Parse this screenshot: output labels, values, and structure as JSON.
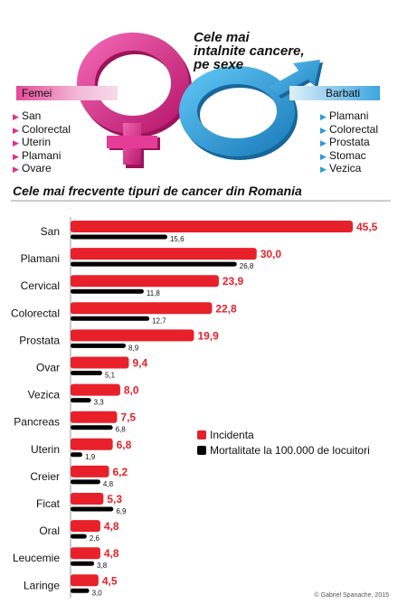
{
  "header": {
    "title_lines": [
      "Cele mai",
      "intalnite cancere,",
      "pe sexe"
    ],
    "women": {
      "label": "Femei",
      "color": "#e2318b",
      "cancers": [
        "San",
        "Colorectal",
        "Uterin",
        "Plamani",
        "Ovare"
      ]
    },
    "men": {
      "label": "Barbati",
      "color": "#2b9ad6",
      "cancers": [
        "Plamani",
        "Colorectal",
        "Prostata",
        "Stomac",
        "Vezica"
      ]
    },
    "icons": [
      "venus-symbol-icon",
      "mars-symbol-icon",
      "triangle-bullet-icon"
    ]
  },
  "credit": "© Gabriel Spanache, 2015",
  "chart_data": {
    "type": "bar",
    "orientation": "horizontal",
    "title": "Cele mai frecvente tipuri de cancer din Romania",
    "categories": [
      "San",
      "Plamani",
      "Cervical",
      "Colorectal",
      "Prostata",
      "Ovar",
      "Vezica",
      "Pancreas",
      "Uterin",
      "Creier",
      "Ficat",
      "Oral",
      "Leucemie",
      "Laringe"
    ],
    "series": [
      {
        "name": "Incidenta",
        "color": "#e8202a",
        "values": [
          45.5,
          30.0,
          23.9,
          22.8,
          19.9,
          9.4,
          8.0,
          7.5,
          6.8,
          6.2,
          5.3,
          4.8,
          4.8,
          4.5
        ],
        "labels": [
          "45,5",
          "30,0",
          "23,9",
          "22,8",
          "19,9",
          "9,4",
          "8,0",
          "7,5",
          "6,8",
          "6,2",
          "5,3",
          "4,8",
          "4,8",
          "4,5"
        ]
      },
      {
        "name": "Mortalitate la 100.000 de locuitori",
        "color": "#000000",
        "values": [
          15.6,
          26.8,
          11.8,
          12.7,
          8.9,
          5.1,
          3.3,
          6.8,
          1.9,
          4.8,
          6.9,
          2.6,
          3.8,
          3.0
        ],
        "labels": [
          "15,6",
          "26,8",
          "11,8",
          "12,7",
          "8,9",
          "5,1",
          "3,3",
          "6,8",
          "1,9",
          "4,8",
          "6,9",
          "2,6",
          "3,8",
          "3,0"
        ]
      }
    ],
    "legend_position": "middle-right",
    "grid": false,
    "xlim": [
      0,
      45.5
    ]
  }
}
